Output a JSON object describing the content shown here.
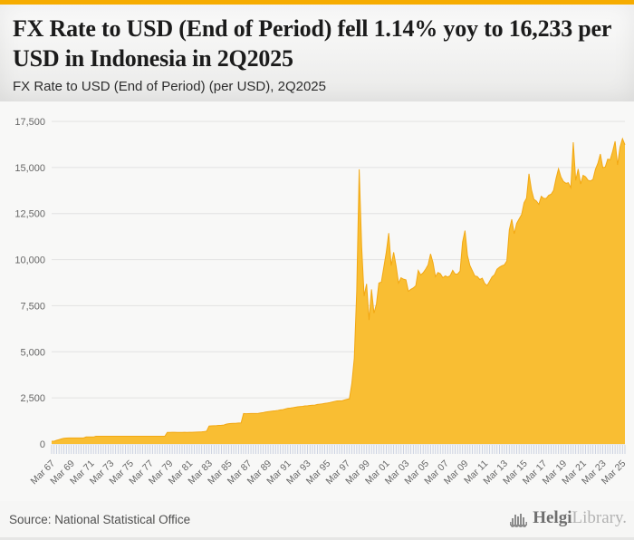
{
  "page": {
    "accent_color": "#F6AC00",
    "background_color": "#f8f8f7"
  },
  "header": {
    "title": "FX Rate to USD (End of Period) fell 1.14% yoy to 16,233 per USD in Indonesia in 2Q2025",
    "subtitle": "FX Rate to USD (End of Period) (per USD), 2Q2025"
  },
  "footer": {
    "source": "Source: National Statistical Office",
    "logo_primary": "Helgi",
    "logo_secondary": "Library."
  },
  "chart_data": {
    "type": "area",
    "title": "FX Rate to USD (End of Period) (per USD), 2Q2025",
    "country": "Indonesia",
    "unit": "per USD",
    "frequency": "quarterly",
    "x_start": "Mar 1967",
    "x_end": "Jun 2025",
    "latest_value": 16233,
    "yoy_change_pct": -1.14,
    "ylim": [
      0,
      17500
    ],
    "ytick_step": 2500,
    "ytick_labels": [
      "0",
      "2,500",
      "5,000",
      "7,500",
      "10,000",
      "12,500",
      "15,000",
      "17,500"
    ],
    "x_tick_labels": [
      "Mar 67",
      "Mar 69",
      "Mar 71",
      "Mar 73",
      "Mar 75",
      "Mar 77",
      "Mar 79",
      "Mar 81",
      "Mar 83",
      "Mar 85",
      "Mar 87",
      "Mar 89",
      "Mar 91",
      "Mar 93",
      "Mar 95",
      "Mar 97",
      "Mar 99",
      "Mar 01",
      "Mar 03",
      "Mar 05",
      "Mar 07",
      "Mar 09",
      "Mar 11",
      "Mar 13",
      "Mar 15",
      "Mar 17",
      "Mar 19",
      "Mar 21",
      "Mar 23",
      "Mar 25"
    ],
    "x_label_every_n_points": 8,
    "grid": true,
    "legend": false,
    "colors": {
      "fill": "#F9BE33",
      "stroke": "#F2A813",
      "gridline": "#e2e2e2",
      "baseline": "#d6d6d6",
      "tick": "#c7cedf",
      "axis_text": "#666666"
    },
    "series": [
      {
        "name": "FX Rate to USD (End of Period)",
        "values": [
          150,
          150,
          195,
          235,
          275,
          305,
          320,
          326,
          326,
          326,
          326,
          326,
          326,
          326,
          378,
          378,
          378,
          378,
          415,
          415,
          415,
          415,
          415,
          415,
          415,
          415,
          415,
          415,
          415,
          415,
          415,
          415,
          415,
          415,
          415,
          415,
          415,
          415,
          415,
          415,
          415,
          415,
          415,
          415,
          415,
          415,
          415,
          625,
          627,
          632,
          635,
          627,
          627,
          627,
          630,
          627,
          632,
          635,
          638,
          644,
          650,
          655,
          673,
          693,
          970,
          983,
          988,
          994,
          1006,
          1013,
          1026,
          1074,
          1098,
          1111,
          1120,
          1125,
          1134,
          1141,
          1650,
          1641,
          1646,
          1650,
          1650,
          1650,
          1657,
          1682,
          1702,
          1731,
          1752,
          1770,
          1787,
          1800,
          1822,
          1847,
          1862,
          1901,
          1934,
          1947,
          1969,
          1992,
          2014,
          2029,
          2043,
          2062,
          2071,
          2087,
          2103,
          2110,
          2144,
          2160,
          2175,
          2200,
          2221,
          2246,
          2276,
          2308,
          2338,
          2342,
          2340,
          2383,
          2419,
          2450,
          3275,
          4650,
          8325,
          14900,
          10700,
          8025,
          8685,
          6726,
          8386,
          7100,
          7590,
          8735,
          8780,
          9595,
          10400,
          11440,
          9675,
          10400,
          9655,
          8730,
          9015,
          8940,
          8905,
          8285,
          8389,
          8465,
          8587,
          9415,
          9170,
          9290,
          9480,
          9713,
          10310,
          9830,
          9075,
          9300,
          9235,
          9020,
          9118,
          9054,
          9137,
          9419,
          9217,
          9225,
          9378,
          10950,
          11575,
          10225,
          9681,
          9400,
          9115,
          9083,
          8924,
          8991,
          8709,
          8597,
          8823,
          9068,
          9180,
          9480,
          9588,
          9670,
          9719,
          9929,
          11613,
          12189,
          11404,
          11969,
          12212,
          12440,
          13084,
          13332,
          14657,
          13795,
          13276,
          13180,
          12998,
          13436,
          13321,
          13319,
          13492,
          13548,
          13756,
          14404,
          14929,
          14481,
          14244,
          14141,
          14174,
          13901,
          16367,
          14302,
          14918,
          14105,
          14572,
          14496,
          14307,
          14269,
          14349,
          14898,
          15228,
          15731,
          14995,
          15026,
          15455,
          15416,
          15873,
          16421,
          15140,
          16102,
          16566,
          16233
        ]
      }
    ]
  }
}
